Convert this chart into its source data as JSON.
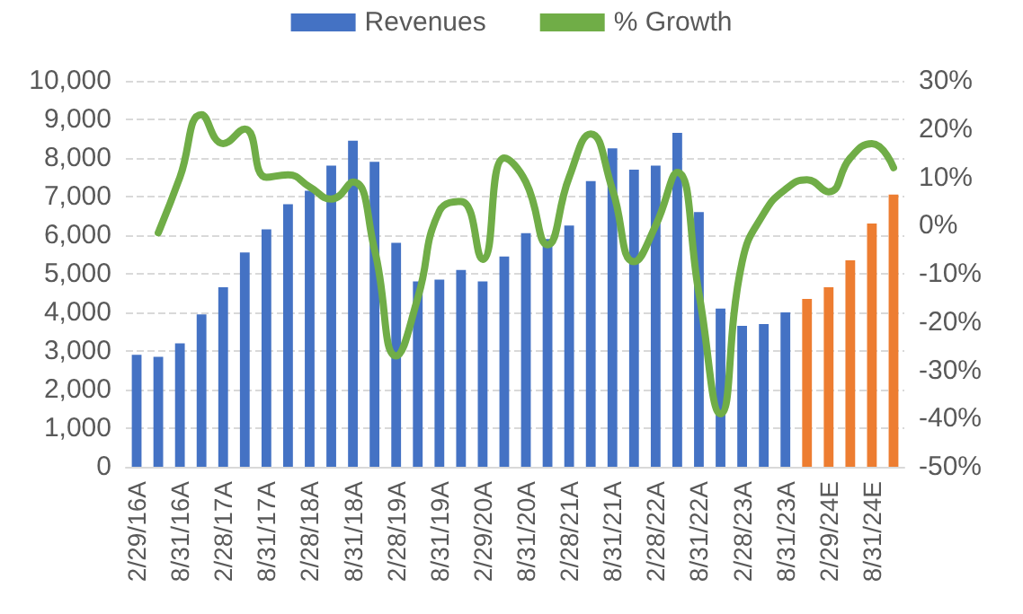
{
  "chart_data": {
    "type": "bar",
    "categories": [
      "2/29/16A",
      null,
      "8/31/16A",
      null,
      "2/28/17A",
      null,
      "8/31/17A",
      null,
      "2/28/18A",
      null,
      "8/31/18A",
      null,
      "2/28/19A",
      null,
      "8/31/19A",
      null,
      "2/29/20A",
      null,
      "8/31/20A",
      null,
      "2/28/21A",
      null,
      "8/31/21A",
      null,
      "2/28/22A",
      null,
      "8/31/22A",
      null,
      "2/28/23A",
      null,
      "8/31/23A",
      null,
      "2/29/24E",
      null,
      "8/31/24E",
      null
    ],
    "series": [
      {
        "name": "Revenues",
        "color": "#4472c4",
        "colors": [
          "#4472c4",
          "#4472c4",
          "#4472c4",
          "#4472c4",
          "#4472c4",
          "#4472c4",
          "#4472c4",
          "#4472c4",
          "#4472c4",
          "#4472c4",
          "#4472c4",
          "#4472c4",
          "#4472c4",
          "#4472c4",
          "#4472c4",
          "#4472c4",
          "#4472c4",
          "#4472c4",
          "#4472c4",
          "#4472c4",
          "#4472c4",
          "#4472c4",
          "#4472c4",
          "#4472c4",
          "#4472c4",
          "#4472c4",
          "#4472c4",
          "#4472c4",
          "#4472c4",
          "#4472c4",
          "#4472c4",
          "#ed7d31",
          "#ed7d31",
          "#ed7d31",
          "#ed7d31",
          "#ed7d31"
        ],
        "values": [
          2900,
          2850,
          3200,
          3950,
          4650,
          5550,
          6150,
          6800,
          7150,
          7800,
          8450,
          7900,
          5800,
          4800,
          4850,
          5100,
          4800,
          5450,
          6050,
          5900,
          6250,
          7400,
          8250,
          7700,
          7800,
          8650,
          6600,
          4100,
          3650,
          3700,
          4000,
          4350,
          4650,
          5350,
          6300,
          7050
        ]
      },
      {
        "name": "% Growth",
        "type": "line",
        "axis": "y2",
        "color": "#70ad47",
        "values": [
          null,
          -1.5,
          10,
          23,
          17,
          20,
          10,
          10.5,
          8,
          5.5,
          9,
          -5,
          -27,
          -15,
          3,
          5,
          -7,
          14,
          9,
          -4,
          10,
          19,
          7.5,
          -7.5,
          0,
          11,
          -14,
          -39,
          -7.5,
          2.5,
          7.5,
          9.5,
          7,
          14,
          17,
          12
        ]
      }
    ],
    "ylim": [
      0,
      10000
    ],
    "yticks": [
      0,
      {
        "value": 1000,
        "label": "1,000"
      },
      {
        "value": 2000,
        "label": "2,000"
      },
      {
        "value": 3000,
        "label": "3,000"
      },
      {
        "value": 4000,
        "label": "4,000"
      },
      {
        "value": 5000,
        "label": "5,000"
      },
      {
        "value": 6000,
        "label": "6,000"
      },
      {
        "value": 7000,
        "label": "7,000"
      },
      {
        "value": 8000,
        "label": "8,000"
      },
      {
        "value": 9000,
        "label": "9,000"
      },
      {
        "value": 10000,
        "label": "10,000"
      }
    ],
    "y2lim": [
      -50,
      30
    ],
    "y2ticks": [
      {
        "value": -50,
        "label": "-50%"
      },
      {
        "value": -40,
        "label": "-40%"
      },
      {
        "value": -30,
        "label": "-30%"
      },
      {
        "value": -20,
        "label": "-20%"
      },
      {
        "value": -10,
        "label": "-10%"
      },
      {
        "value": 0,
        "label": "0%"
      },
      {
        "value": 10,
        "label": "10%"
      },
      {
        "value": 20,
        "label": "20%"
      },
      {
        "value": 30,
        "label": "30%"
      }
    ],
    "grid": "y",
    "legend": "top",
    "marker": "none",
    "line_style": "solid"
  }
}
